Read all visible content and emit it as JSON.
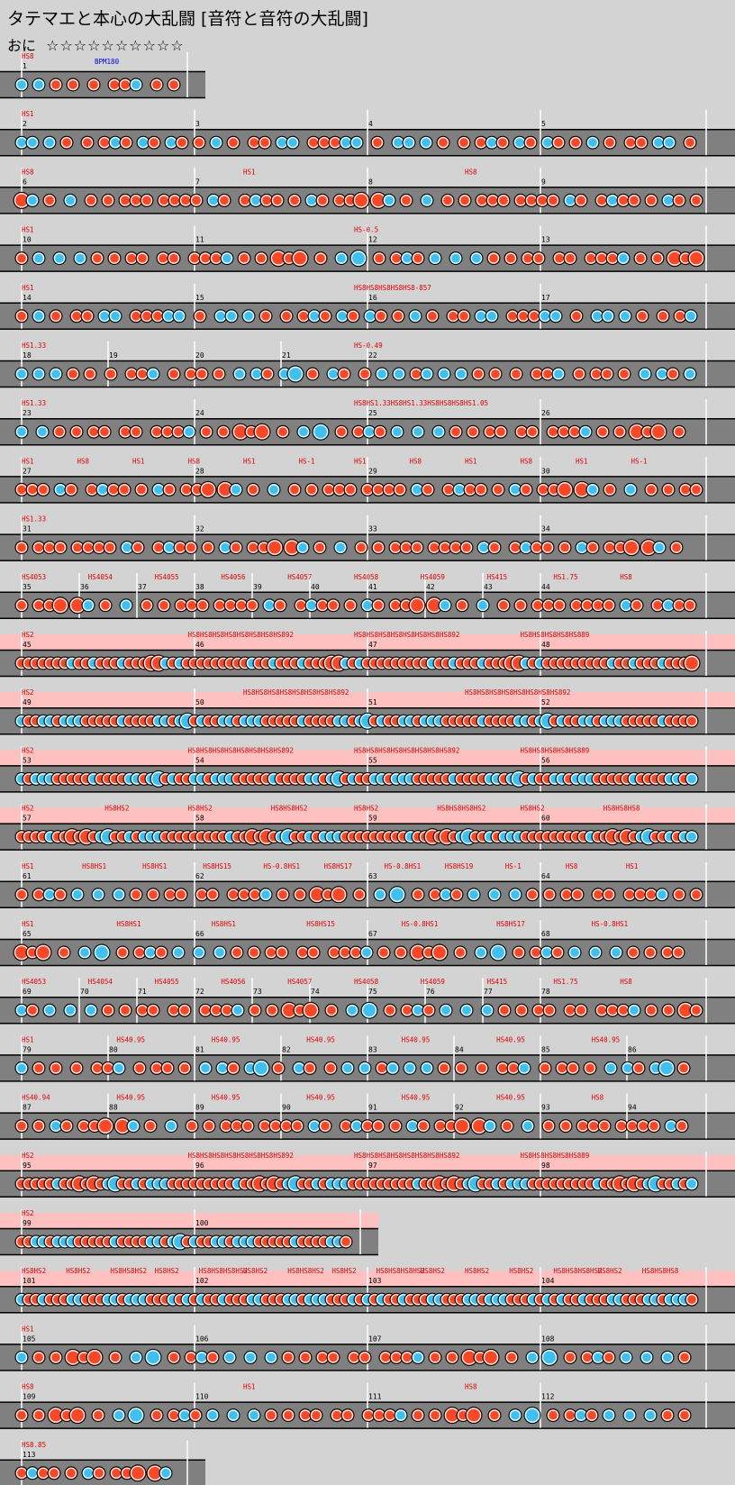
{
  "page_title": "タテマエと本心の大乱闘 [音符と音符の大乱闘]",
  "course_label": "おに",
  "stars": "☆☆☆☆☆☆☆☆☆☆",
  "colors": {
    "background": "#d3d3d3",
    "lane": "#808080",
    "don": "#f84828",
    "ka": "#40c0f0",
    "scroll_label": "#e00000",
    "bpm_label": "#0000e0",
    "gogo_band": "#ffc0c0",
    "bar_line": "#ffffff"
  },
  "rows": [
    {
      "gogo": false,
      "span": [
        0,
        1
      ],
      "bars": [
        "1"
      ],
      "labels": [
        "HS8",
        "BPM180"
      ]
    },
    {
      "gogo": false,
      "span": [
        0,
        4
      ],
      "bars": [
        "2",
        "3",
        "4",
        "5"
      ],
      "labels": [
        "HS1"
      ]
    },
    {
      "gogo": false,
      "span": [
        0,
        4
      ],
      "bars": [
        "6",
        "7",
        "8",
        "9"
      ],
      "labels": [
        "HS8",
        "HS1",
        "HS8"
      ]
    },
    {
      "gogo": false,
      "span": [
        0,
        4
      ],
      "bars": [
        "10",
        "11",
        "12",
        "13"
      ],
      "labels": [
        "HS1",
        "HS-0.5"
      ]
    },
    {
      "gogo": false,
      "span": [
        0,
        4
      ],
      "bars": [
        "14",
        "15",
        "16",
        "17"
      ],
      "labels": [
        "HS1",
        "HS8HS8HS8HS8HS8-857"
      ]
    },
    {
      "gogo": false,
      "span": [
        0,
        4
      ],
      "bars": [
        "18",
        "19",
        "20",
        "21",
        "22"
      ],
      "labels": [
        "HS1.33",
        "HS-0.49"
      ]
    },
    {
      "gogo": false,
      "span": [
        0,
        4
      ],
      "bars": [
        "23",
        "24",
        "25",
        "26"
      ],
      "labels": [
        "HS1.33",
        "HS8HS1.33HS8HS1.33HS8HS8HS8HS1.05"
      ]
    },
    {
      "gogo": false,
      "span": [
        0,
        4
      ],
      "bars": [
        "27",
        "28",
        "29",
        "30"
      ],
      "labels": [
        "HS1",
        "HS8",
        "HS1",
        "HS8",
        "HS1",
        "HS-1",
        "HS1",
        "HS8",
        "HS1",
        "HS8",
        "HS1",
        "HS-1"
      ]
    },
    {
      "gogo": false,
      "span": [
        0,
        4
      ],
      "bars": [
        "31",
        "32",
        "33",
        "34"
      ],
      "labels": [
        "HS1.33"
      ]
    },
    {
      "gogo": false,
      "span": [
        0,
        4
      ],
      "bars": [
        "35",
        "36",
        "37",
        "38",
        "39",
        "40",
        "41",
        "42",
        "43",
        "44"
      ],
      "labels": [
        "HS4053",
        "HS4054",
        "HS4055",
        "HS4056",
        "HS4057",
        "HS4058",
        "HS4059",
        "HS415",
        "HS1.75",
        "HS8"
      ]
    },
    {
      "gogo": true,
      "span": [
        0,
        4
      ],
      "bars": [
        "45",
        "46",
        "47",
        "48"
      ],
      "labels": [
        "HS2",
        "HS8HS8HS8HS8HS8HS8HS8HS892",
        "HS8HS8HS8HS8HS8HS8HS8HS892",
        "HS8HS8HS8HS8HS889"
      ]
    },
    {
      "gogo": true,
      "span": [
        0,
        4
      ],
      "bars": [
        "49",
        "50",
        "51",
        "52"
      ],
      "labels": [
        "HS2",
        "HS8HS8HS8HS8HS8HS8HS8HS892",
        "HS8HS8HS8HS8HS8HS8HS8HS892"
      ]
    },
    {
      "gogo": true,
      "span": [
        0,
        4
      ],
      "bars": [
        "53",
        "54",
        "55",
        "56"
      ],
      "labels": [
        "HS2",
        "HS8HS8HS8HS8HS8HS8HS8HS892",
        "HS8HS8HS8HS8HS8HS8HS8HS892",
        "HS8HS8HS8HS8HS889"
      ]
    },
    {
      "gogo": true,
      "span": [
        0,
        4
      ],
      "bars": [
        "57",
        "58",
        "59",
        "60"
      ],
      "labels": [
        "HS2",
        "HS8HS2",
        "HS8HS2",
        "HS8HS8HS2",
        "HS8HS2",
        "HS8HS8HS8HS2",
        "HS8HS2",
        "HS8HS8HS8"
      ]
    },
    {
      "gogo": false,
      "span": [
        0,
        4
      ],
      "bars": [
        "61",
        "62",
        "63",
        "64"
      ],
      "labels": [
        "HS1",
        "HS8HS1",
        "HS8HS1",
        "HS8HS15",
        "HS-0.8HS1",
        "HS8HS17",
        "HS-0.8HS1",
        "HS8HS19",
        "HS-1",
        "HS8",
        "HS1"
      ]
    },
    {
      "gogo": false,
      "span": [
        0,
        4
      ],
      "bars": [
        "65",
        "66",
        "67",
        "68"
      ],
      "labels": [
        "HS1",
        "HS8HS1",
        "HS8HS1",
        "HS8HS15",
        "HS-0.8HS1",
        "HS8HS17",
        "HS-0.8HS1"
      ]
    },
    {
      "gogo": false,
      "span": [
        0,
        4
      ],
      "bars": [
        "69",
        "70",
        "71",
        "72",
        "73",
        "74",
        "75",
        "76",
        "77",
        "78"
      ],
      "labels": [
        "HS4053",
        "HS4054",
        "HS4055",
        "HS4056",
        "HS4057",
        "HS4058",
        "HS4059",
        "HS415",
        "HS1.75",
        "HS8"
      ]
    },
    {
      "gogo": false,
      "span": [
        0,
        4
      ],
      "bars": [
        "79",
        "80",
        "81",
        "82",
        "83",
        "84",
        "85",
        "86"
      ],
      "labels": [
        "HS1",
        "HS40.95",
        "HS40.95",
        "HS40.95",
        "HS40.95",
        "HS40.95",
        "HS40.95"
      ]
    },
    {
      "gogo": false,
      "span": [
        0,
        4
      ],
      "bars": [
        "87",
        "88",
        "89",
        "90",
        "91",
        "92",
        "93",
        "94"
      ],
      "labels": [
        "HS40.94",
        "HS40.95",
        "HS40.95",
        "HS40.95",
        "HS40.95",
        "HS40.95",
        "HS8"
      ]
    },
    {
      "gogo": true,
      "span": [
        0,
        4
      ],
      "bars": [
        "95",
        "96",
        "97",
        "98"
      ],
      "labels": [
        "HS2",
        "HS8HS8HS8HS8HS8HS8HS8HS892",
        "HS8HS8HS8HS8HS8HS8HS8HS892",
        "HS8HS8HS8HS8HS889"
      ]
    },
    {
      "gogo": true,
      "span": [
        0,
        2
      ],
      "bars": [
        "99",
        "100"
      ],
      "labels": [
        "HS2"
      ]
    },
    {
      "gogo": true,
      "span": [
        0,
        4
      ],
      "bars": [
        "101",
        "102",
        "103",
        "104"
      ],
      "labels": [
        "HS8HS2",
        "HS8HS2",
        "HS8HS8HS2",
        "HS8HS2",
        "HS8HS8HS8HS2",
        "HS8HS2",
        "HS8HS8HS2",
        "HS8HS2",
        "HS8HS8HS8HS2",
        "HS8HS2",
        "HS8HS2",
        "HS8HS2",
        "HS8HS8HS8HS2",
        "HS8HS2",
        "HS8HS8HS8"
      ]
    },
    {
      "gogo": false,
      "span": [
        0,
        4
      ],
      "bars": [
        "105",
        "106",
        "107",
        "108"
      ],
      "labels": [
        "HS1"
      ]
    },
    {
      "gogo": false,
      "span": [
        0,
        4
      ],
      "bars": [
        "109",
        "110",
        "111",
        "112"
      ],
      "labels": [
        "HS8",
        "HS1",
        "HS8"
      ]
    },
    {
      "gogo": false,
      "span": [
        0,
        1
      ],
      "bars": [
        "113"
      ],
      "labels": [
        "HS8.85"
      ]
    }
  ]
}
